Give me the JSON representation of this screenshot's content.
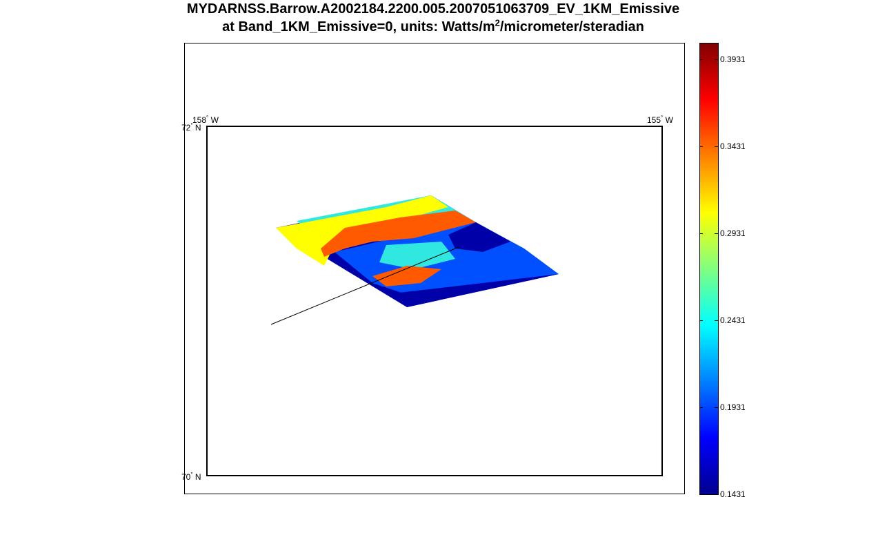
{
  "title": {
    "line1": "MYDARNSS.Barrow.A2002184.2200.005.2007051063709_EV_1KM_Emissive",
    "line2_prefix": "at Band_1KM_Emissive=0, units: Watts/m",
    "line2_sup": "2",
    "line2_suffix": "/micrometer/steradian"
  },
  "map": {
    "lon_labels": [
      "158",
      "155"
    ],
    "lat_labels": [
      "72",
      "70"
    ],
    "lon_suffix": "W",
    "lat_suffix": "N",
    "degree_symbol": "°"
  },
  "colorbar": {
    "min": 0.1431,
    "max": 0.4031,
    "tick_labels": [
      "0.3931",
      "0.3431",
      "0.2931",
      "0.2431",
      "0.1931",
      "0.1431"
    ],
    "colormap": "jet"
  },
  "colors": {
    "dark_blue": "#0000a8",
    "blue": "#0050ff",
    "cyan": "#30e8e0",
    "yellow": "#ffff00",
    "orange": "#ff5a00",
    "red": "#ff3300"
  }
}
